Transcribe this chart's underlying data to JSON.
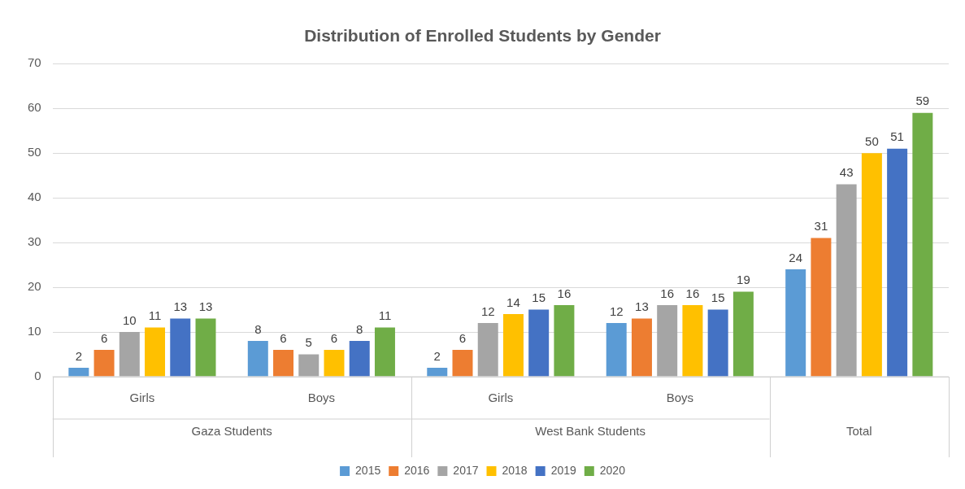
{
  "chart_data": {
    "type": "bar",
    "title": "Distribution of Enrolled Students by Gender",
    "categories": [
      "Girls",
      "Boys",
      "Girls",
      "Boys",
      null
    ],
    "series": [
      {
        "name": "2015",
        "color": "#5b9bd5",
        "values": [
          2,
          8,
          2,
          12,
          24
        ]
      },
      {
        "name": "2016",
        "color": "#ed7d31",
        "values": [
          6,
          6,
          6,
          13,
          31
        ]
      },
      {
        "name": "2017",
        "color": "#a5a5a5",
        "values": [
          10,
          5,
          12,
          16,
          43
        ]
      },
      {
        "name": "2018",
        "color": "#ffc000",
        "values": [
          11,
          6,
          14,
          16,
          50
        ]
      },
      {
        "name": "2019",
        "color": "#4472c4",
        "values": [
          13,
          8,
          15,
          15,
          51
        ]
      },
      {
        "name": "2020",
        "color": "#70ad47",
        "values": [
          13,
          11,
          16,
          19,
          59
        ]
      }
    ],
    "ylim": [
      0,
      70
    ],
    "yticks": [
      0,
      10,
      20,
      30,
      40,
      50,
      60,
      70
    ],
    "grid": "y",
    "legend": "bottom",
    "data_labels": true,
    "annotations": [
      "Gaza Students",
      "West Bank Students",
      "Total"
    ]
  }
}
